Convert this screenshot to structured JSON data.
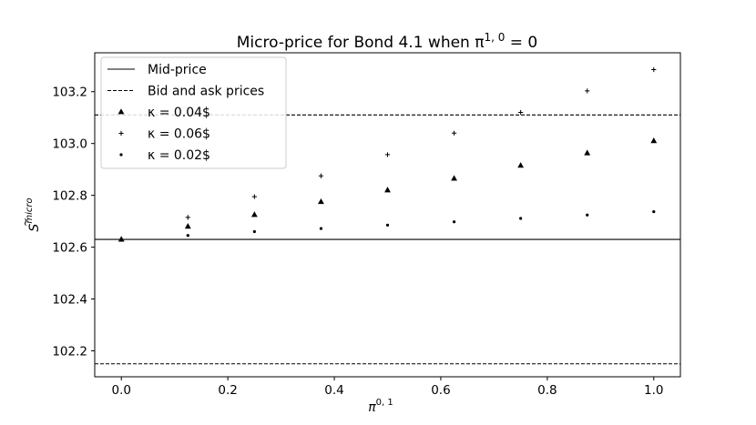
{
  "chart_data": {
    "type": "scatter",
    "title": "Micro-price for Bond 4.1 when π",
    "title_sup": "1, 0",
    "title_suffix": " = 0",
    "xlabel": "π",
    "xlabel_sup": "0, 1",
    "ylabel": "S",
    "ylabel_sup": "micro",
    "xlim": [
      -0.05,
      1.05
    ],
    "ylim": [
      102.1,
      103.35
    ],
    "xticks": [
      0.0,
      0.2,
      0.4,
      0.6,
      0.8,
      1.0
    ],
    "xtick_labels": [
      "0.0",
      "0.2",
      "0.4",
      "0.6",
      "0.8",
      "1.0"
    ],
    "yticks": [
      102.2,
      102.4,
      102.6,
      102.8,
      103.0,
      103.2
    ],
    "ytick_labels": [
      "102.2",
      "102.4",
      "102.6",
      "102.8",
      "103.0",
      "103.2"
    ],
    "grid": false,
    "legend_position": "top-left",
    "hlines": [
      {
        "name": "Mid-price",
        "y": 102.63,
        "style": "solid"
      },
      {
        "name": "Bid and ask prices",
        "y": 103.11,
        "style": "dashed"
      },
      {
        "name": "Bid and ask prices",
        "y": 102.15,
        "style": "dashed"
      }
    ],
    "series": [
      {
        "name": "κ = 0.04$",
        "marker": "triangle",
        "x": [
          0.0,
          0.125,
          0.25,
          0.375,
          0.5,
          0.625,
          0.75,
          0.875,
          1.0
        ],
        "y": [
          102.63,
          102.68,
          102.725,
          102.775,
          102.82,
          102.865,
          102.915,
          102.963,
          103.01
        ]
      },
      {
        "name": "κ = 0.06$",
        "marker": "plus",
        "x": [
          0.0,
          0.125,
          0.25,
          0.375,
          0.5,
          0.625,
          0.75,
          0.875,
          1.0
        ],
        "y": [
          102.63,
          102.715,
          102.795,
          102.875,
          102.957,
          103.04,
          103.12,
          103.203,
          103.285
        ]
      },
      {
        "name": "κ = 0.02$",
        "marker": "dot",
        "x": [
          0.0,
          0.125,
          0.25,
          0.375,
          0.5,
          0.625,
          0.75,
          0.875,
          1.0
        ],
        "y": [
          102.63,
          102.645,
          102.66,
          102.672,
          102.685,
          102.698,
          102.711,
          102.724,
          102.737
        ]
      }
    ],
    "legend": [
      {
        "label": "Mid-price",
        "kind": "solid-line"
      },
      {
        "label": "Bid and ask prices",
        "kind": "dashed-line"
      },
      {
        "label": "κ = 0.04$",
        "kind": "triangle"
      },
      {
        "label": "κ = 0.06$",
        "kind": "plus"
      },
      {
        "label": "κ = 0.02$",
        "kind": "dot"
      }
    ]
  }
}
